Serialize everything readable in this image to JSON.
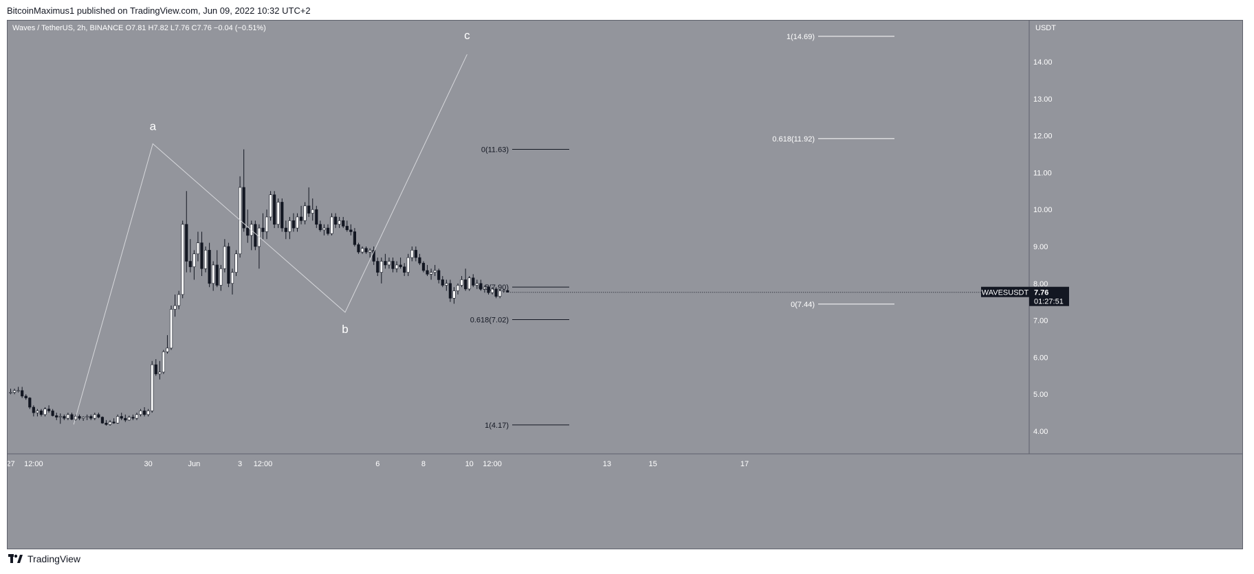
{
  "header": {
    "published_line": "BitcoinMaximus1 published on TradingView.com, Jun 09, 2022 10:32 UTC+2"
  },
  "footer": {
    "brand": "TradingView"
  },
  "chart_data": {
    "type": "candlestick",
    "symbol_line": {
      "name": "Waves / TetherUS, 2h, BINANCE",
      "o_label": "O",
      "o_value": "7.81",
      "h_label": "H",
      "h_value": "7.82",
      "l_label": "L",
      "l_value": "7.76",
      "c_label": "C",
      "c_value": "7.76",
      "change": "−0.04 (−0.51%)"
    },
    "currency": "USDT",
    "y_ticks": [
      "4.00",
      "5.00",
      "6.00",
      "7.00",
      "8.00",
      "9.00",
      "10.00",
      "11.00",
      "12.00",
      "13.00",
      "14.00"
    ],
    "ylim": [
      3.6,
      15.0
    ],
    "x_ticks": [
      {
        "label": "27",
        "t": 0
      },
      {
        "label": "12:00",
        "t": 6
      },
      {
        "label": "30",
        "t": 36
      },
      {
        "label": "Jun",
        "t": 48
      },
      {
        "label": "3",
        "t": 60
      },
      {
        "label": "12:00",
        "t": 66
      },
      {
        "label": "6",
        "t": 96
      },
      {
        "label": "8",
        "t": 108
      },
      {
        "label": "10",
        "t": 120
      },
      {
        "label": "12:00",
        "t": 126
      },
      {
        "label": "13",
        "t": 156
      },
      {
        "label": "15",
        "t": 168
      },
      {
        "label": "17",
        "t": 192
      }
    ],
    "price_tag": {
      "symbol": "WAVESUSDT",
      "price": "7.76",
      "countdown": "01:27:51",
      "value": 7.76
    },
    "waves": [
      {
        "label": "a",
        "t": 37.2,
        "price": 11.78
      },
      {
        "label": "b",
        "t": 87.5,
        "price": 7.22
      },
      {
        "label": "c",
        "t": 119.4,
        "price": 14.2
      }
    ],
    "wave_start": {
      "t": 16.5,
      "price": 4.18
    },
    "fib_left": [
      {
        "label": "0(11.63)",
        "value": 11.63
      },
      {
        "label": "0.5(7.90)",
        "value": 7.9
      },
      {
        "label": "0.618(7.02)",
        "value": 7.02
      },
      {
        "label": "1(4.17)",
        "value": 4.17
      }
    ],
    "fib_right": [
      {
        "label": "1(14.69)",
        "value": 14.69
      },
      {
        "label": "0.618(11.92)",
        "value": 11.92
      },
      {
        "label": "0(7.44)",
        "value": 7.44
      }
    ],
    "candles": [
      [
        5.05,
        5.15,
        5.0,
        5.05
      ],
      [
        5.05,
        5.15,
        5.0,
        5.1
      ],
      [
        5.1,
        5.2,
        5.05,
        5.1
      ],
      [
        5.1,
        5.2,
        4.9,
        4.95
      ],
      [
        4.95,
        5.0,
        4.85,
        4.9
      ],
      [
        4.9,
        4.92,
        4.6,
        4.65
      ],
      [
        4.65,
        4.7,
        4.4,
        4.5
      ],
      [
        4.5,
        4.6,
        4.4,
        4.55
      ],
      [
        4.55,
        4.6,
        4.4,
        4.45
      ],
      [
        4.45,
        4.65,
        4.4,
        4.6
      ],
      [
        4.6,
        4.7,
        4.5,
        4.55
      ],
      [
        4.55,
        4.6,
        4.4,
        4.42
      ],
      [
        4.42,
        4.5,
        4.3,
        4.38
      ],
      [
        4.38,
        4.48,
        4.2,
        4.4
      ],
      [
        4.4,
        4.45,
        4.3,
        4.35
      ],
      [
        4.35,
        4.5,
        4.3,
        4.45
      ],
      [
        4.45,
        4.5,
        4.3,
        4.32
      ],
      [
        4.32,
        4.45,
        4.28,
        4.4
      ],
      [
        4.4,
        4.45,
        4.3,
        4.35
      ],
      [
        4.35,
        4.4,
        4.28,
        4.38
      ],
      [
        4.38,
        4.45,
        4.3,
        4.4
      ],
      [
        4.4,
        4.45,
        4.3,
        4.35
      ],
      [
        4.35,
        4.5,
        4.3,
        4.45
      ],
      [
        4.45,
        4.5,
        4.35,
        4.38
      ],
      [
        4.38,
        4.4,
        4.2,
        4.22
      ],
      [
        4.22,
        4.3,
        4.15,
        4.18
      ],
      [
        4.18,
        4.3,
        4.15,
        4.25
      ],
      [
        4.25,
        4.35,
        4.2,
        4.22
      ],
      [
        4.22,
        4.45,
        4.2,
        4.4
      ],
      [
        4.4,
        4.5,
        4.3,
        4.35
      ],
      [
        4.35,
        4.45,
        4.25,
        4.3
      ],
      [
        4.3,
        4.42,
        4.28,
        4.38
      ],
      [
        4.38,
        4.45,
        4.3,
        4.35
      ],
      [
        4.35,
        4.5,
        4.3,
        4.45
      ],
      [
        4.45,
        4.6,
        4.4,
        4.55
      ],
      [
        4.55,
        4.65,
        4.4,
        4.45
      ],
      [
        4.45,
        4.6,
        4.4,
        4.55
      ],
      [
        4.55,
        5.9,
        4.5,
        5.8
      ],
      [
        5.8,
        5.95,
        5.5,
        5.55
      ],
      [
        5.55,
        5.9,
        5.4,
        5.6
      ],
      [
        5.6,
        6.2,
        5.55,
        6.15
      ],
      [
        6.15,
        6.6,
        6.1,
        6.25
      ],
      [
        6.25,
        7.4,
        6.2,
        7.3
      ],
      [
        7.3,
        7.7,
        7.1,
        7.4
      ],
      [
        7.4,
        7.8,
        7.3,
        7.7
      ],
      [
        7.7,
        9.7,
        7.6,
        9.6
      ],
      [
        9.6,
        10.5,
        8.3,
        8.6
      ],
      [
        8.6,
        9.2,
        8.3,
        8.45
      ],
      [
        8.45,
        8.9,
        8.1,
        8.8
      ],
      [
        8.8,
        9.4,
        8.6,
        9.1
      ],
      [
        9.1,
        9.4,
        8.2,
        8.4
      ],
      [
        8.4,
        9.0,
        8.3,
        8.9
      ],
      [
        8.9,
        9.1,
        7.9,
        8.0
      ],
      [
        8.0,
        8.6,
        7.8,
        8.5
      ],
      [
        8.5,
        8.9,
        7.9,
        7.95
      ],
      [
        7.95,
        8.5,
        7.8,
        8.4
      ],
      [
        8.4,
        9.2,
        8.3,
        9.0
      ],
      [
        9.0,
        9.1,
        7.9,
        8.0
      ],
      [
        8.0,
        8.4,
        7.7,
        8.3
      ],
      [
        8.3,
        8.9,
        8.2,
        8.8
      ],
      [
        8.8,
        10.9,
        8.7,
        10.6
      ],
      [
        10.6,
        11.63,
        9.4,
        9.5
      ],
      [
        9.5,
        10.0,
        9.1,
        9.3
      ],
      [
        9.3,
        9.7,
        8.9,
        9.6
      ],
      [
        9.6,
        9.7,
        8.9,
        9.0
      ],
      [
        9.0,
        9.6,
        8.4,
        9.5
      ],
      [
        9.5,
        9.9,
        9.2,
        9.4
      ],
      [
        9.4,
        10.0,
        9.2,
        9.8
      ],
      [
        9.8,
        10.5,
        9.7,
        10.4
      ],
      [
        10.4,
        10.5,
        9.5,
        9.6
      ],
      [
        9.6,
        10.3,
        9.5,
        10.2
      ],
      [
        10.2,
        10.3,
        9.4,
        9.5
      ],
      [
        9.5,
        9.7,
        9.2,
        9.4
      ],
      [
        9.4,
        9.8,
        9.2,
        9.7
      ],
      [
        9.7,
        9.9,
        9.4,
        9.5
      ],
      [
        9.5,
        9.9,
        9.4,
        9.8
      ],
      [
        9.8,
        10.1,
        9.6,
        9.7
      ],
      [
        9.7,
        10.2,
        9.6,
        10.1
      ],
      [
        10.1,
        10.6,
        9.8,
        9.9
      ],
      [
        9.9,
        10.3,
        9.7,
        10.0
      ],
      [
        10.0,
        10.1,
        9.5,
        9.6
      ],
      [
        9.6,
        9.7,
        9.4,
        9.45
      ],
      [
        9.45,
        9.6,
        9.3,
        9.5
      ],
      [
        9.5,
        9.6,
        9.3,
        9.35
      ],
      [
        9.35,
        9.9,
        9.3,
        9.8
      ],
      [
        9.8,
        9.9,
        9.5,
        9.6
      ],
      [
        9.6,
        9.8,
        9.5,
        9.7
      ],
      [
        9.7,
        9.8,
        9.5,
        9.55
      ],
      [
        9.55,
        9.7,
        9.4,
        9.45
      ],
      [
        9.45,
        9.6,
        9.3,
        9.4
      ],
      [
        9.4,
        9.5,
        9.0,
        9.05
      ],
      [
        9.05,
        9.1,
        8.8,
        8.85
      ],
      [
        8.85,
        9.0,
        8.8,
        8.95
      ],
      [
        8.95,
        9.0,
        8.8,
        8.85
      ],
      [
        8.85,
        8.95,
        8.7,
        8.9
      ],
      [
        8.9,
        9.0,
        8.5,
        8.6
      ],
      [
        8.6,
        8.7,
        8.2,
        8.3
      ],
      [
        8.3,
        8.7,
        8.0,
        8.6
      ],
      [
        8.6,
        8.8,
        8.4,
        8.5
      ],
      [
        8.5,
        8.7,
        8.4,
        8.6
      ],
      [
        8.6,
        8.7,
        8.3,
        8.4
      ],
      [
        8.4,
        8.6,
        8.3,
        8.5
      ],
      [
        8.5,
        8.7,
        8.4,
        8.45
      ],
      [
        8.45,
        8.55,
        8.2,
        8.3
      ],
      [
        8.3,
        8.8,
        8.2,
        8.7
      ],
      [
        8.7,
        9.0,
        8.6,
        8.9
      ],
      [
        8.9,
        9.0,
        8.6,
        8.7
      ],
      [
        8.7,
        8.8,
        8.5,
        8.55
      ],
      [
        8.55,
        8.6,
        8.3,
        8.35
      ],
      [
        8.35,
        8.5,
        8.2,
        8.25
      ],
      [
        8.25,
        8.4,
        8.1,
        8.3
      ],
      [
        8.3,
        8.5,
        8.2,
        8.35
      ],
      [
        8.35,
        8.4,
        8.0,
        8.1
      ],
      [
        8.1,
        8.2,
        7.9,
        7.95
      ],
      [
        7.95,
        8.1,
        7.8,
        8.0
      ],
      [
        8.0,
        8.1,
        7.5,
        7.6
      ],
      [
        7.6,
        7.9,
        7.45,
        7.8
      ],
      [
        7.8,
        8.0,
        7.7,
        7.95
      ],
      [
        7.95,
        8.2,
        7.9,
        8.1
      ],
      [
        8.1,
        8.4,
        7.8,
        7.85
      ],
      [
        7.85,
        8.2,
        7.8,
        8.15
      ],
      [
        8.15,
        8.25,
        7.9,
        7.95
      ],
      [
        7.95,
        8.1,
        7.85,
        8.0
      ],
      [
        8.0,
        8.1,
        7.8,
        7.85
      ],
      [
        7.85,
        7.95,
        7.75,
        7.9
      ],
      [
        7.9,
        7.95,
        7.7,
        7.75
      ],
      [
        7.75,
        7.9,
        7.7,
        7.85
      ],
      [
        7.85,
        7.9,
        7.6,
        7.65
      ],
      [
        7.65,
        7.85,
        7.6,
        7.8
      ],
      [
        7.8,
        7.85,
        7.75,
        7.81
      ],
      [
        7.81,
        7.82,
        7.76,
        7.76
      ]
    ],
    "candle_colors": {
      "up": "#ffffff",
      "down": "#131722",
      "wick": "#131722"
    },
    "background": "#93959c",
    "axis_text": "#ffffff"
  }
}
